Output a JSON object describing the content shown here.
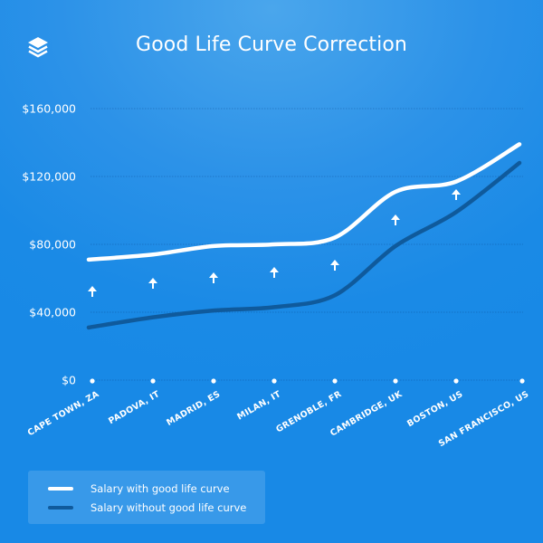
{
  "header": {
    "title": "Good Life Curve Correction",
    "logo_icon": "layers-stack-icon"
  },
  "colors": {
    "background": "#1a8ae6",
    "series_with": "#ffffff",
    "series_without": "#0f5a9c"
  },
  "legend": {
    "items": [
      {
        "label": "Salary with good life curve",
        "color": "#ffffff"
      },
      {
        "label": "Salary without good life curve",
        "color": "#0f5a9c"
      }
    ]
  },
  "chart_data": {
    "type": "line",
    "title": "Good Life Curve Correction",
    "xlabel": "",
    "ylabel": "",
    "ylim": [
      0,
      160000
    ],
    "yticks": [
      0,
      40000,
      80000,
      120000,
      160000
    ],
    "ytick_labels": [
      "$0",
      "$40,000",
      "$80,000",
      "$120,000",
      "$160,000"
    ],
    "grid": true,
    "legend_position": "bottom-left",
    "categories": [
      "CAPE TOWN, ZA",
      "PADOVA, IT",
      "MADRID, ES",
      "MILAN, IT",
      "GRENOBLE, FR",
      "CAMBRIDGE, UK",
      "BOSTON, US",
      "SAN FRANCISCO, US"
    ],
    "series": [
      {
        "name": "Salary with good life curve",
        "values": [
          71000,
          74000,
          79000,
          80000,
          84000,
          111000,
          117000,
          139000
        ]
      },
      {
        "name": "Salary without good life curve",
        "values": [
          31000,
          37000,
          41000,
          43000,
          50000,
          79000,
          99000,
          128000
        ]
      }
    ],
    "annotations": "Up-arrow markers placed between the two curves for the first seven cities, indicating salary uplift"
  }
}
